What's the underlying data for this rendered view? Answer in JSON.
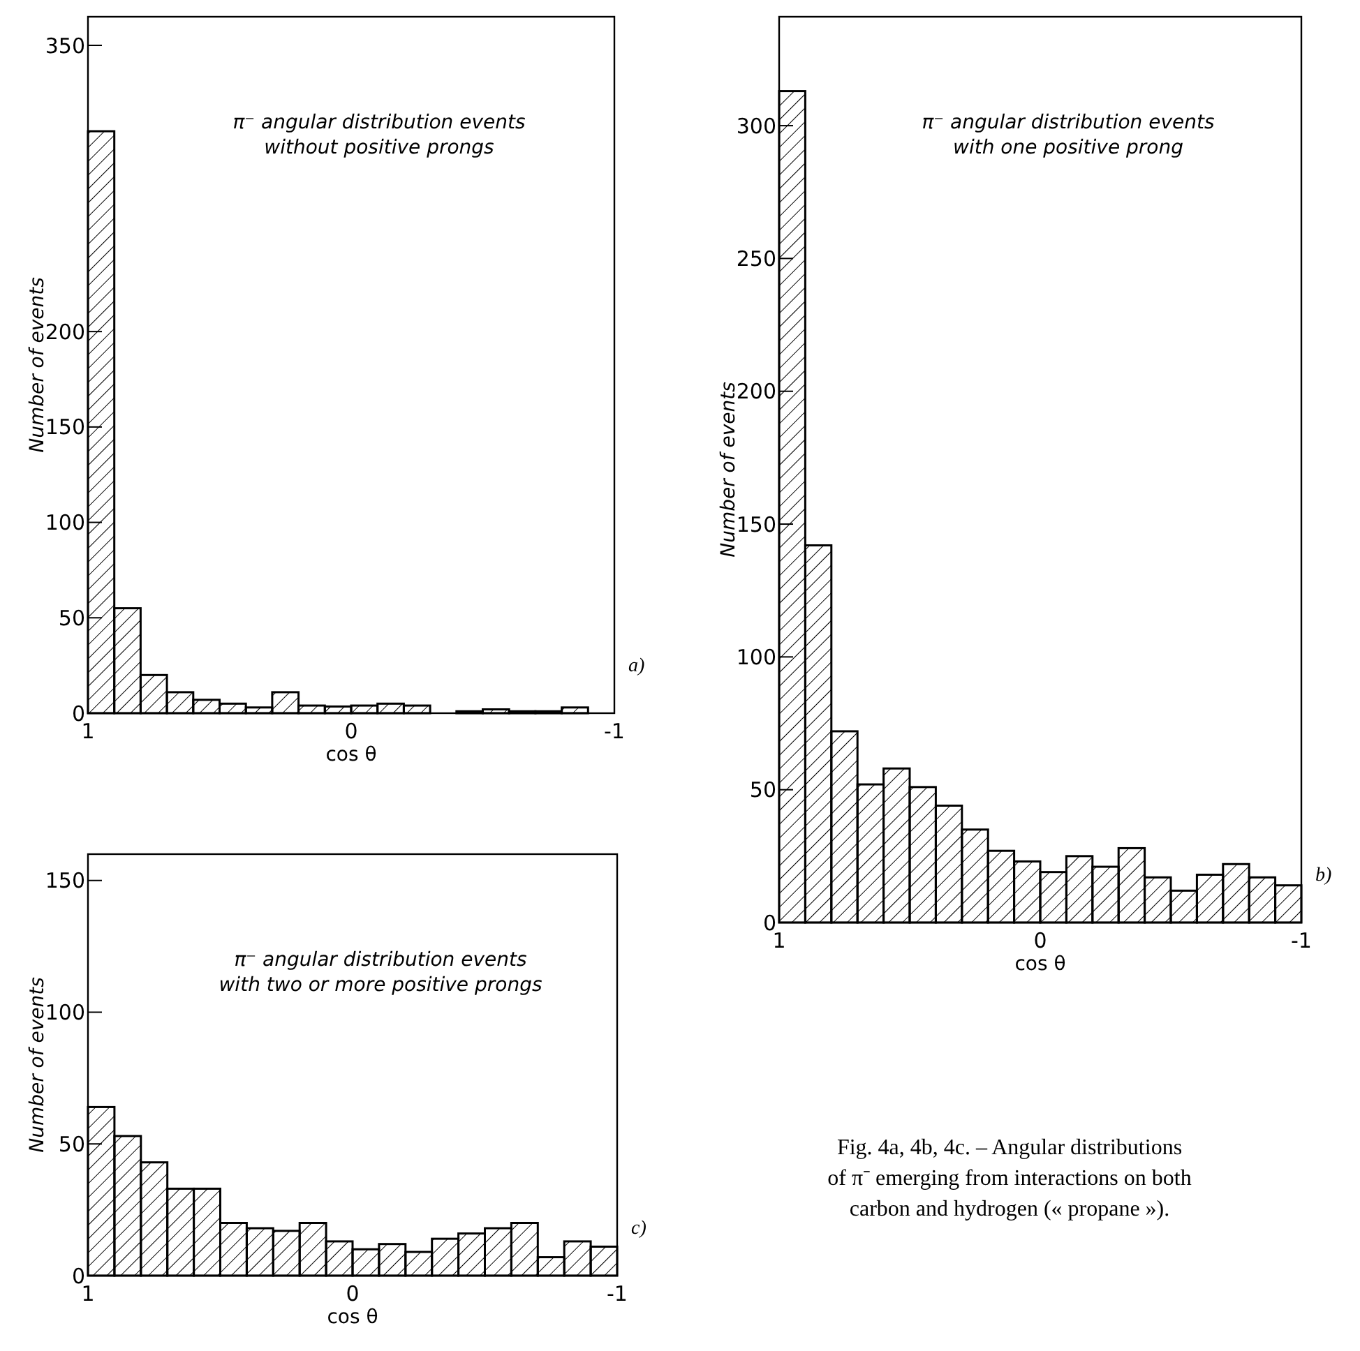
{
  "chart_data": [
    {
      "type": "histogram",
      "title": "π⁻ angular distribution events",
      "subtitle": "without positive prongs",
      "xlabel": "cos θ",
      "ylabel": "Number of events",
      "color": "#000000",
      "bins": [
        1,
        0.9,
        0.8,
        0.7,
        0.6,
        0.5,
        0.4,
        0.3,
        0.2,
        0.1,
        0,
        -0.1,
        -0.2,
        -0.3,
        -0.4,
        -0.5,
        -0.6,
        -0.7,
        -0.8,
        -0.9,
        -1
      ],
      "values": [
        305,
        55,
        20,
        11,
        7,
        5,
        3,
        11,
        4,
        3.5,
        4,
        5,
        4,
        0,
        1,
        2,
        1,
        1,
        3,
        0
      ],
      "xlim": [
        1,
        -1
      ],
      "xticks": [
        1,
        0,
        -1
      ],
      "ylim": [
        0,
        365
      ],
      "yticks": [
        0,
        50,
        100,
        150,
        200,
        350
      ],
      "annotations": [
        "a)"
      ]
    },
    {
      "type": "histogram",
      "title": "π⁻ angular distribution events",
      "subtitle": "with one positive prong",
      "xlabel": "cos θ",
      "ylabel": "Number of events",
      "color": "#000000",
      "bins": [
        1,
        0.9,
        0.8,
        0.7,
        0.6,
        0.5,
        0.4,
        0.3,
        0.2,
        0.1,
        0,
        -0.1,
        -0.2,
        -0.3,
        -0.4,
        -0.5,
        -0.6,
        -0.7,
        -0.8,
        -0.9,
        -1
      ],
      "values": [
        313,
        142,
        72,
        52,
        58,
        51,
        44,
        35,
        27,
        23,
        19,
        25,
        21,
        28,
        17,
        12,
        18,
        22,
        17,
        14
      ],
      "xlim": [
        1,
        -1
      ],
      "xticks": [
        1,
        0,
        -1
      ],
      "ylim": [
        0,
        341
      ],
      "yticks": [
        0,
        50,
        100,
        150,
        200,
        250,
        300
      ],
      "annotations": [
        "b)"
      ]
    },
    {
      "type": "histogram",
      "title": "π⁻ angular distribution events",
      "subtitle": "with two or more positive prongs",
      "xlabel": "cos θ",
      "ylabel": "Number of events",
      "color": "#000000",
      "bins": [
        1,
        0.9,
        0.8,
        0.7,
        0.6,
        0.5,
        0.4,
        0.3,
        0.2,
        0.1,
        0,
        -0.1,
        -0.2,
        -0.3,
        -0.4,
        -0.5,
        -0.6,
        -0.7,
        -0.8,
        -0.9,
        -1
      ],
      "values": [
        64,
        53,
        43,
        33,
        33,
        20,
        18,
        17,
        20,
        13,
        10,
        12,
        9,
        14,
        16,
        18,
        20,
        7,
        13,
        11
      ],
      "xlim": [
        1,
        -1
      ],
      "xticks": [
        1,
        0,
        -1
      ],
      "ylim": [
        0,
        160
      ],
      "yticks": [
        0,
        50,
        100,
        150
      ],
      "annotations": [
        "c)",
        "Fig. 4a, 4b, 4c. – Angular distributions of π⁻ emerging from interactions on both carbon and hydrogen (« propane »)."
      ]
    }
  ]
}
